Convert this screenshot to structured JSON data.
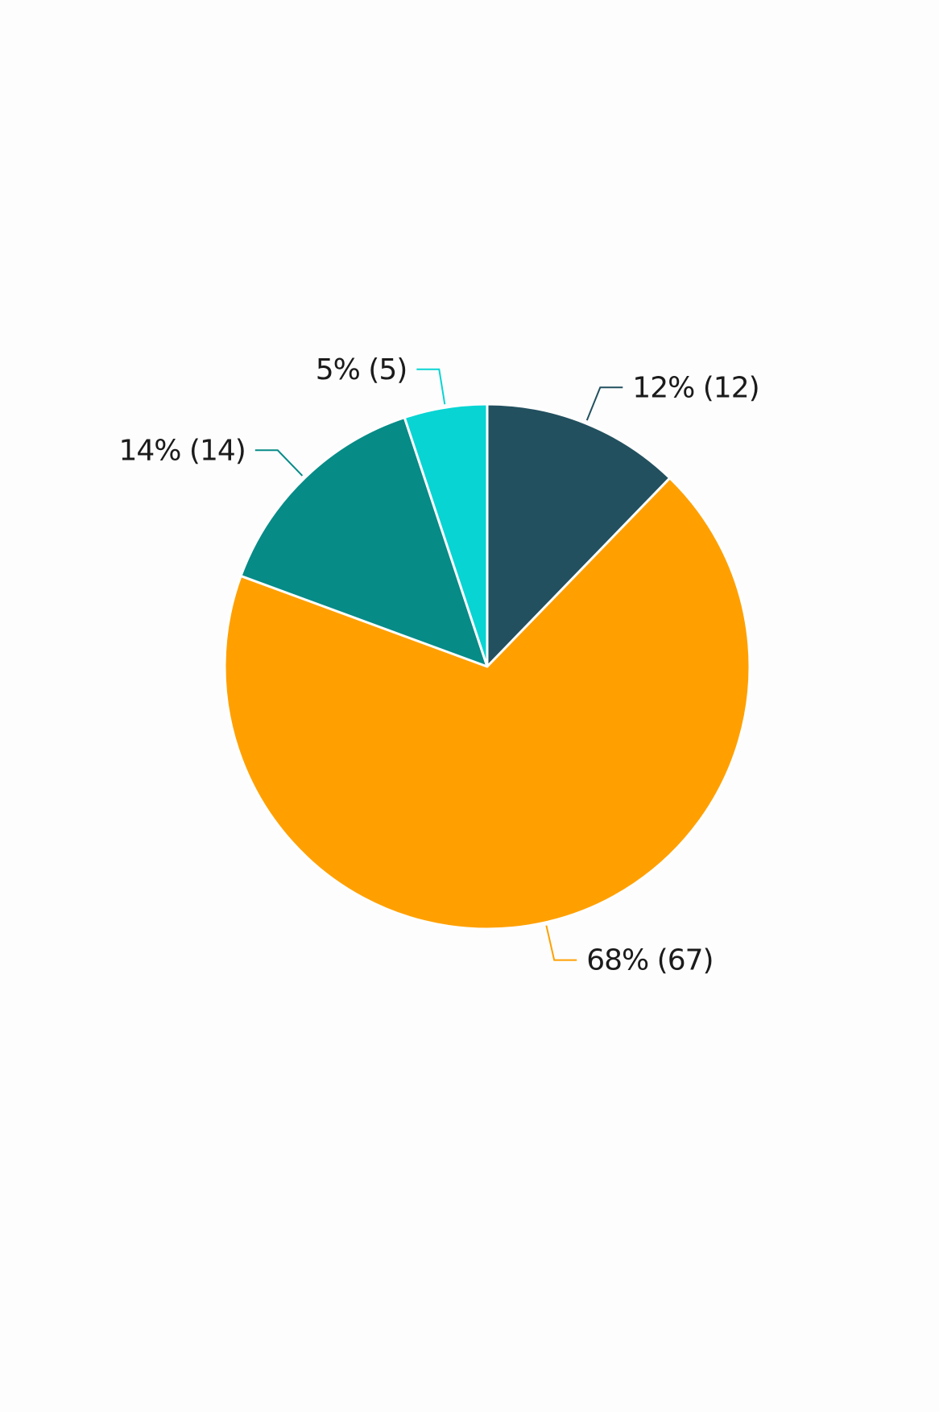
{
  "chart_data": {
    "type": "pie",
    "title": "",
    "start_angle_deg": 0,
    "direction": "clockwise",
    "slices": [
      {
        "value": 12,
        "percent": 12,
        "label": "12% (12)",
        "color": "#22505F"
      },
      {
        "value": 67,
        "percent": 68,
        "label": "68% (67)",
        "color": "#FFA000"
      },
      {
        "value": 14,
        "percent": 14,
        "label": "14% (14)",
        "color": "#068B87"
      },
      {
        "value": 5,
        "percent": 5,
        "label": "5% (5)",
        "color": "#08D4D3"
      }
    ],
    "legend": "none",
    "data_labels": "outside with leader lines"
  },
  "background_color": "#FDFDFD"
}
